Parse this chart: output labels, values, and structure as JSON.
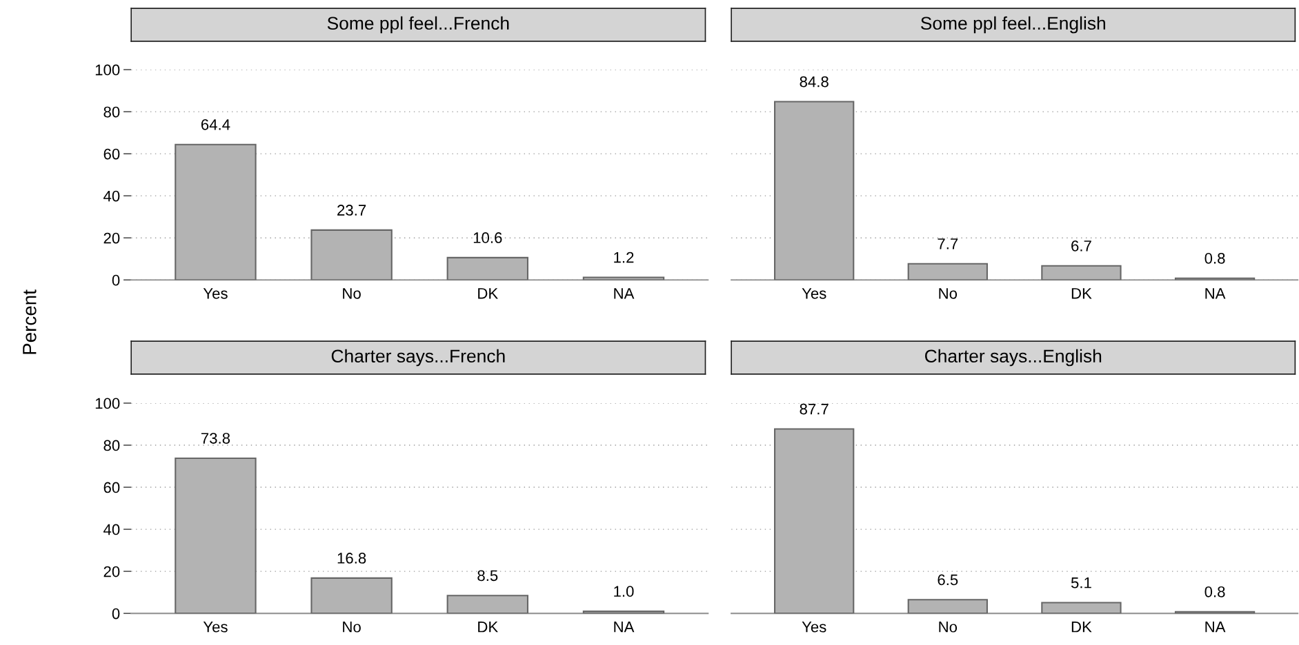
{
  "chart_data": [
    {
      "type": "bar",
      "title": "Some ppl feel...French",
      "ylabel": "Percent",
      "categories": [
        "Yes",
        "No",
        "DK",
        "NA"
      ],
      "values": [
        64.4,
        23.7,
        10.6,
        1.2
      ],
      "color": "#b3b3b3",
      "ylim": [
        0,
        100
      ],
      "yticks": [
        0,
        20,
        40,
        60,
        80,
        100
      ],
      "grid": "y",
      "data_labels": true
    },
    {
      "type": "bar",
      "title": "Some ppl feel...English",
      "categories": [
        "Yes",
        "No",
        "DK",
        "NA"
      ],
      "values": [
        84.8,
        7.7,
        6.7,
        0.8
      ],
      "color": "#b3b3b3",
      "ylim": [
        0,
        100
      ],
      "yticks": [
        0,
        20,
        40,
        60,
        80,
        100
      ],
      "grid": "y",
      "data_labels": true,
      "tick_labels": "x"
    },
    {
      "type": "bar",
      "title": "Charter says...French",
      "categories": [
        "Yes",
        "No",
        "DK",
        "NA"
      ],
      "values": [
        73.8,
        16.8,
        8.5,
        1.0
      ],
      "value_labels": [
        "73.8",
        "16.8",
        "8.5",
        "1.0"
      ],
      "color": "#b3b3b3",
      "ylim": [
        0,
        100
      ],
      "yticks": [
        0,
        20,
        40,
        60,
        80,
        100
      ],
      "grid": "y"
    },
    {
      "type": "bar",
      "title": "Charter says...English",
      "categories": [
        "Yes",
        "No",
        "DK",
        "NA"
      ],
      "values": [
        87.7,
        6.5,
        5.1,
        0.8
      ],
      "color": "#b3b3b3",
      "ylim": [
        0,
        100
      ],
      "yticks": [
        0,
        20,
        40,
        60,
        80,
        100
      ],
      "grid": "y",
      "data_labels": true,
      "tick_labels": "x"
    }
  ]
}
